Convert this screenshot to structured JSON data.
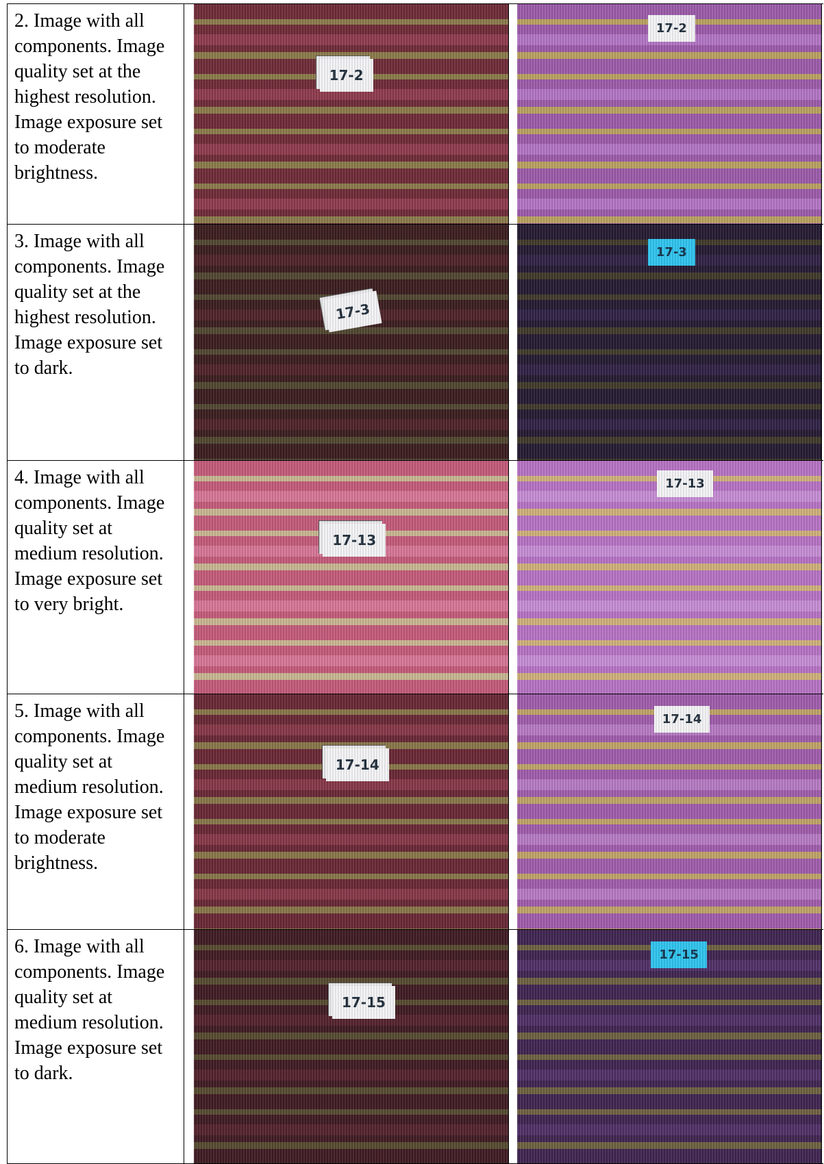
{
  "table": {
    "rows": [
      {
        "description": "2. Image with all components. Image quality set at the highest resolution. Image exposure set to moderate brightness.",
        "left_label": "17-2",
        "right_label": "17-2"
      },
      {
        "description": "3. Image with all components. Image quality set at the highest resolution. Image exposure set to dark.",
        "left_label": "17-3",
        "right_label": "17-3"
      },
      {
        "description": "4. Image with all components. Image quality set at medium resolution. Image exposure set to very bright.",
        "left_label": "17-13",
        "right_label": "17-13"
      },
      {
        "description": "5. Image with all components. Image quality set at medium resolution. Image exposure set to moderate brightness.",
        "left_label": "17-14",
        "right_label": "17-14"
      },
      {
        "description": "6. Image with all components. Image quality set at medium resolution. Image exposure set to dark.",
        "left_label": "17-15",
        "right_label": "17-15"
      }
    ]
  }
}
